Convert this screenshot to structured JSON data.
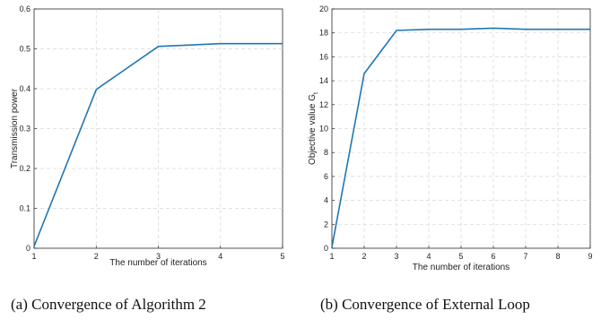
{
  "chart_data": [
    {
      "type": "line",
      "title": "",
      "xlabel": "The number of iterations",
      "ylabel": "Transmission power",
      "xlim": [
        1,
        5
      ],
      "ylim": [
        0,
        0.6
      ],
      "xticks": [
        "1",
        "2",
        "3",
        "4",
        "5"
      ],
      "yticks": [
        "0",
        "0.1",
        "0.2",
        "0.3",
        "0.4",
        "0.5",
        "0.6"
      ],
      "grid": true,
      "color": "#1f77b4",
      "series": [
        {
          "x": [
            1,
            2,
            3,
            4,
            5
          ],
          "y": [
            0.005,
            0.398,
            0.506,
            0.513,
            0.513
          ]
        }
      ],
      "caption": "(a) Convergence of Algorithm 2"
    },
    {
      "type": "line",
      "title": "",
      "xlabel": "The number of iterations",
      "ylabel": "Objective value G",
      "ylabel_subscript": "t",
      "xlim": [
        1,
        9
      ],
      "ylim": [
        0,
        20
      ],
      "xticks": [
        "1",
        "2",
        "3",
        "4",
        "5",
        "6",
        "7",
        "8",
        "9"
      ],
      "yticks": [
        "0",
        "2",
        "4",
        "6",
        "8",
        "10",
        "12",
        "14",
        "16",
        "18",
        "20"
      ],
      "grid": true,
      "color": "#1f77b4",
      "series": [
        {
          "x": [
            1,
            2,
            3,
            4,
            5,
            6,
            7,
            8,
            9
          ],
          "y": [
            0.1,
            14.6,
            18.2,
            18.3,
            18.3,
            18.4,
            18.3,
            18.3,
            18.3
          ]
        }
      ],
      "caption": "(b) Convergence of External Loop"
    }
  ]
}
